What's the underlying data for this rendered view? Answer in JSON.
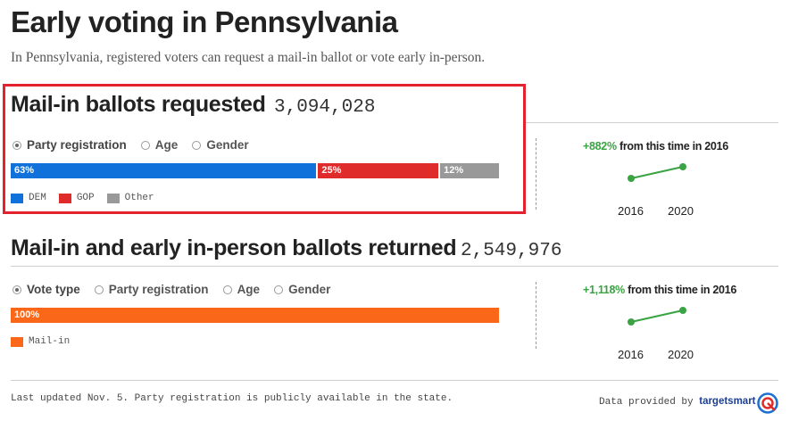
{
  "header": {
    "title": "Early voting in Pennsylvania",
    "subtitle": "In Pennsylvania, registered voters can request a mail-in ballot or vote early in-person."
  },
  "colors": {
    "dem": "#0f71d9",
    "gop": "#e02b2b",
    "other": "#999999",
    "mailin": "#fa6718",
    "trend": "#3aa343",
    "highlight": "#e2232d"
  },
  "requested": {
    "title": "Mail-in ballots requested",
    "count": "3,094,028",
    "options": [
      "Party registration",
      "Age",
      "Gender"
    ],
    "selected": "Party registration",
    "bar": [
      {
        "label": "63%",
        "value": 63,
        "color": "#0f71d9"
      },
      {
        "label": "25%",
        "value": 25,
        "color": "#e02b2b"
      },
      {
        "label": "12%",
        "value": 12,
        "color": "#999999"
      }
    ],
    "legend": [
      "DEM",
      "GOP",
      "Other"
    ],
    "change_pct": "+882%",
    "change_text": " from this time in 2016",
    "years": [
      "2016",
      "2020"
    ]
  },
  "returned": {
    "title": "Mail-in and early in-person ballots returned",
    "count": "2,549,976",
    "options": [
      "Vote type",
      "Party registration",
      "Age",
      "Gender"
    ],
    "selected": "Vote type",
    "bar": [
      {
        "label": "100%",
        "value": 100,
        "color": "#fa6718"
      }
    ],
    "legend": [
      "Mail-in"
    ],
    "change_pct": "+1,118%",
    "change_text": " from this time in 2016",
    "years": [
      "2016",
      "2020"
    ]
  },
  "footer": {
    "note": "Last updated Nov. 5. Party registration is publicly available in the state.",
    "provided": "Data provided by",
    "brand": "targetsmart"
  }
}
